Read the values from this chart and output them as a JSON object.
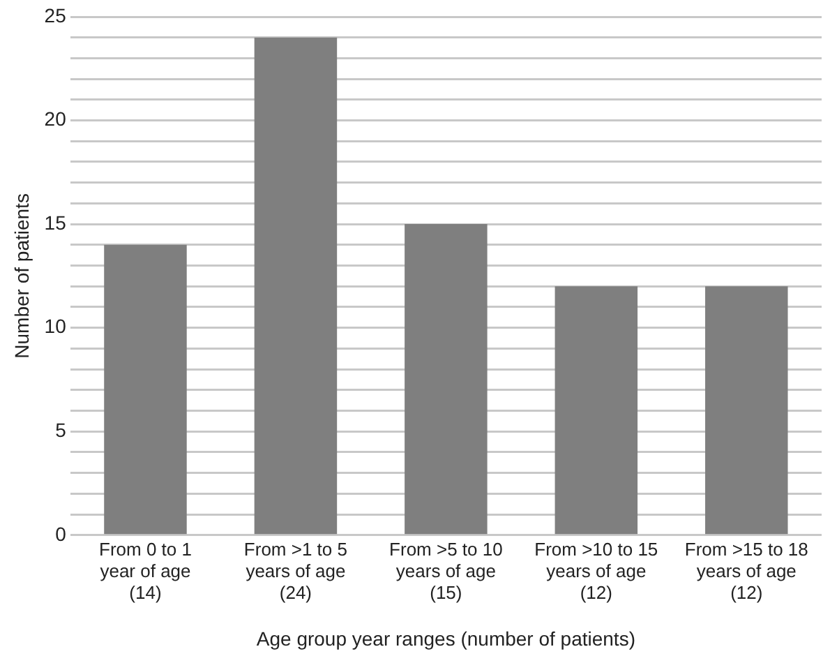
{
  "chart_data": {
    "type": "bar",
    "xlabel": "Age group year ranges (number of patients)",
    "ylabel": "Number of patients",
    "categories": [
      "From 0 to 1\nyear of age\n(14)",
      "From >1 to 5\nyears of age\n(24)",
      "From >5 to 10\nyears of age\n(15)",
      "From >10 to 15\nyears of age\n(12)",
      "From >15 to 18\nyears of age\n(12)"
    ],
    "values": [
      14,
      24,
      15,
      12,
      12
    ],
    "color": "#7f7f7f",
    "ylim": [
      0,
      25
    ],
    "yticks": [
      0,
      {
        "value": 1,
        "label": null
      },
      {
        "value": 2,
        "label": null
      },
      {
        "value": 3,
        "label": null
      },
      {
        "value": 4,
        "label": null
      },
      5,
      {
        "value": 6,
        "label": null
      },
      {
        "value": 7,
        "label": null
      },
      {
        "value": 8,
        "label": null
      },
      {
        "value": 9,
        "label": null
      },
      10,
      {
        "value": 11,
        "label": null
      },
      {
        "value": 12,
        "label": null
      },
      {
        "value": 13,
        "label": null
      },
      {
        "value": 14,
        "label": null
      },
      15,
      {
        "value": 16,
        "label": null
      },
      {
        "value": 17,
        "label": null
      },
      {
        "value": 18,
        "label": null
      },
      {
        "value": 19,
        "label": null
      },
      20,
      {
        "value": 21,
        "label": null
      },
      {
        "value": 22,
        "label": null
      },
      {
        "value": 23,
        "label": null
      },
      {
        "value": 24,
        "label": null
      },
      25
    ],
    "grid": "y",
    "legend": false
  }
}
